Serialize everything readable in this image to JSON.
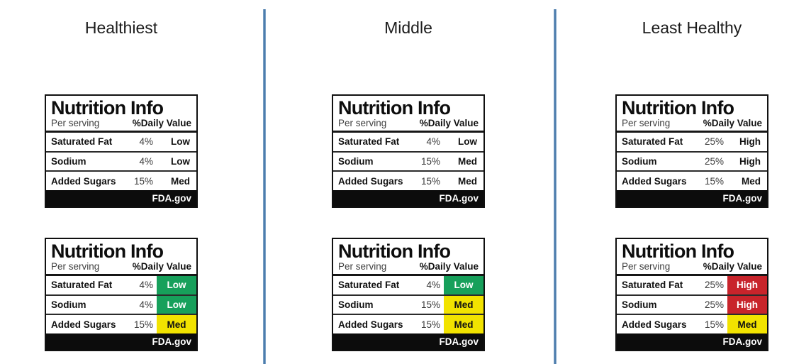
{
  "figure": {
    "description": "Comparison of interpretive FDA nutrition info labels across three healthiness tiers"
  },
  "label_template": {
    "title": "Nutrition Info",
    "per_serving": "Per serving",
    "daily_value": "%Daily Value",
    "footer": "FDA.gov"
  },
  "colors": {
    "green": "#17A05B",
    "yellow": "#F2E300",
    "red": "#C8242B",
    "divider_blue": "#4d7dac",
    "footer_bar": "#0c0c0c"
  },
  "columns": [
    {
      "header": "Healthiest",
      "labels": [
        {
          "variant": "plain",
          "rows": [
            {
              "name": "Saturated Fat",
              "percent": "4%",
              "rating": "Low",
              "level": "low"
            },
            {
              "name": "Sodium",
              "percent": "4%",
              "rating": "Low",
              "level": "low"
            },
            {
              "name": "Added Sugars",
              "percent": "15%",
              "rating": "Med",
              "level": "med"
            }
          ]
        },
        {
          "variant": "colored",
          "rows": [
            {
              "name": "Saturated Fat",
              "percent": "4%",
              "rating": "Low",
              "level": "low"
            },
            {
              "name": "Sodium",
              "percent": "4%",
              "rating": "Low",
              "level": "low"
            },
            {
              "name": "Added Sugars",
              "percent": "15%",
              "rating": "Med",
              "level": "med"
            }
          ]
        }
      ]
    },
    {
      "header": "Middle",
      "labels": [
        {
          "variant": "plain",
          "rows": [
            {
              "name": "Saturated Fat",
              "percent": "4%",
              "rating": "Low",
              "level": "low"
            },
            {
              "name": "Sodium",
              "percent": "15%",
              "rating": "Med",
              "level": "med"
            },
            {
              "name": "Added Sugars",
              "percent": "15%",
              "rating": "Med",
              "level": "med"
            }
          ]
        },
        {
          "variant": "colored",
          "rows": [
            {
              "name": "Saturated Fat",
              "percent": "4%",
              "rating": "Low",
              "level": "low"
            },
            {
              "name": "Sodium",
              "percent": "15%",
              "rating": "Med",
              "level": "med"
            },
            {
              "name": "Added Sugars",
              "percent": "15%",
              "rating": "Med",
              "level": "med"
            }
          ]
        }
      ]
    },
    {
      "header": "Least Healthy",
      "labels": [
        {
          "variant": "plain",
          "rows": [
            {
              "name": "Saturated Fat",
              "percent": "25%",
              "rating": "High",
              "level": "high"
            },
            {
              "name": "Sodium",
              "percent": "25%",
              "rating": "High",
              "level": "high"
            },
            {
              "name": "Added Sugars",
              "percent": "15%",
              "rating": "Med",
              "level": "med"
            }
          ]
        },
        {
          "variant": "colored",
          "rows": [
            {
              "name": "Saturated Fat",
              "percent": "25%",
              "rating": "High",
              "level": "high"
            },
            {
              "name": "Sodium",
              "percent": "25%",
              "rating": "High",
              "level": "high"
            },
            {
              "name": "Added Sugars",
              "percent": "15%",
              "rating": "Med",
              "level": "med"
            }
          ]
        }
      ]
    }
  ]
}
